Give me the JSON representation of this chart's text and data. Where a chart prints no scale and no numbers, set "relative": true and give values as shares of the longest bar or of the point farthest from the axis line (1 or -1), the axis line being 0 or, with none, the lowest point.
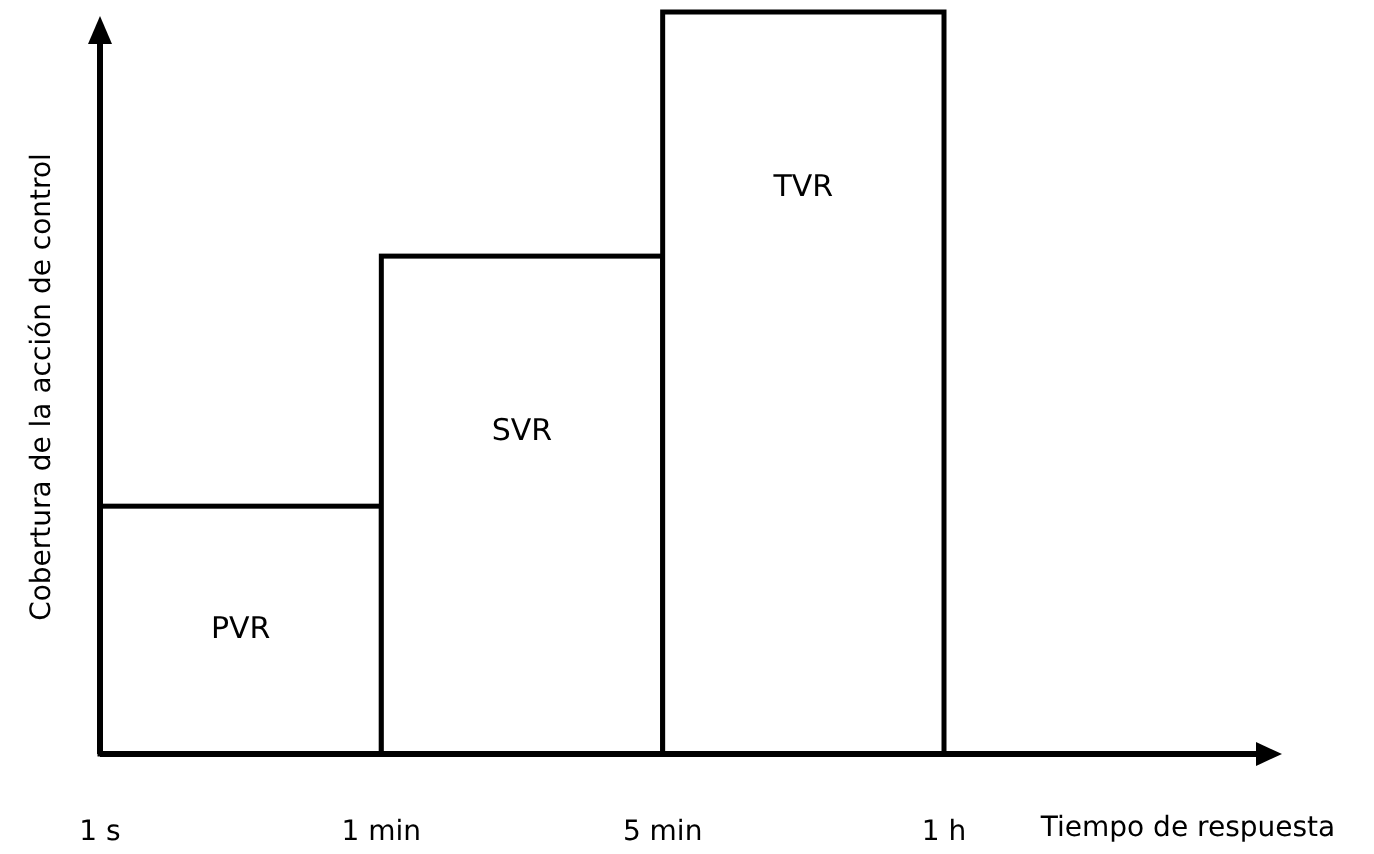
{
  "chart_data": {
    "type": "bar",
    "relative": true,
    "xlabel": "Tiempo de respuesta",
    "ylabel": "Cobertura de la acción de control",
    "categories": [
      null,
      null,
      null
    ],
    "values": [
      0.334,
      0.671,
      1
    ],
    "color": "#ffffff",
    "annotations": [
      "1 s",
      "1 min",
      "5 min",
      "1 h",
      "PVR",
      "SVR",
      "TVR"
    ],
    "grid": false
  }
}
